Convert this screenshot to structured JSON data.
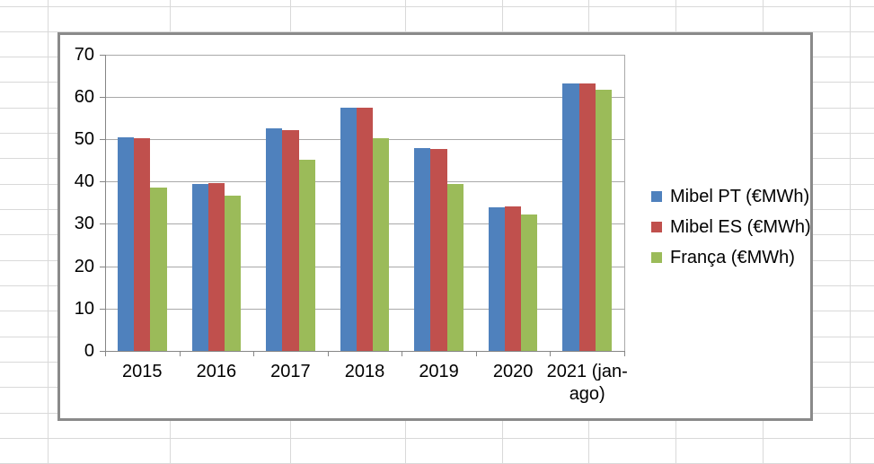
{
  "chart_data": {
    "type": "bar",
    "title": "",
    "categories": [
      "2015",
      "2016",
      "2017",
      "2018",
      "2019",
      "2020",
      "2021 (jan-ago)"
    ],
    "series": [
      {
        "name": "Mibel PT (€MWh)",
        "color": "#4F81BD",
        "values": [
          50.4,
          39.4,
          52.5,
          57.5,
          47.9,
          33.9,
          63.2
        ]
      },
      {
        "name": "Mibel ES (€MWh)",
        "color": "#C0504D",
        "values": [
          50.3,
          39.7,
          52.2,
          57.3,
          47.7,
          34.0,
          63.2
        ]
      },
      {
        "name": "França (€MWh)",
        "color": "#9BBB59",
        "values": [
          38.5,
          36.6,
          45.1,
          50.2,
          39.4,
          32.2,
          61.6
        ]
      }
    ],
    "ylim": [
      0,
      70
    ],
    "yticks": [
      0,
      10,
      20,
      30,
      40,
      50,
      60,
      70
    ],
    "xlabel": "",
    "ylabel": "",
    "grid": true,
    "legend_position": "right",
    "colors": {
      "gridline": "#A9A9A9",
      "axis": "#868686",
      "chart_border": "#8A8A8A",
      "sheet_gridline": "#D9D9D9",
      "text": "#000000"
    }
  }
}
